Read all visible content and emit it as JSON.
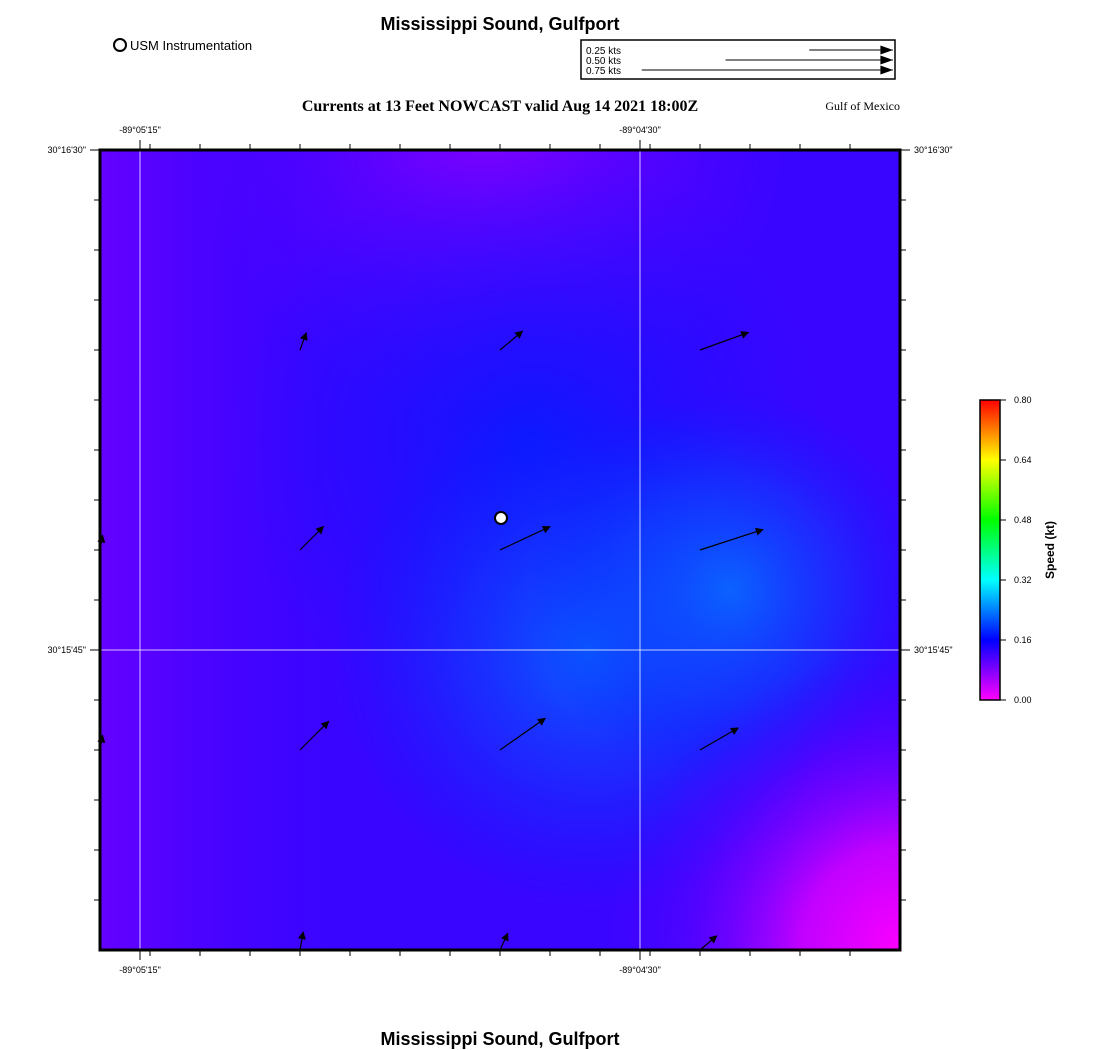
{
  "header": {
    "title": "Mississippi Sound, Gulfport",
    "subtitle": "Currents at 13 Feet NOWCAST valid Aug 14 2021 18:00Z",
    "region": "Gulf of Mexico"
  },
  "footer": {
    "title": "Mississippi Sound, Gulfport"
  },
  "instrument_legend": {
    "label": "USM Instrumentation"
  },
  "vector_legend": {
    "entries": [
      {
        "label": "0.25 kts",
        "speed": 0.25
      },
      {
        "label": "0.50 kts",
        "speed": 0.5
      },
      {
        "label": "0.75 kts",
        "speed": 0.75
      }
    ]
  },
  "axes": {
    "lon_ticks": [
      "-89°05'15\"",
      "-89°04'30\""
    ],
    "lat_ticks": [
      "30°16'30\"",
      "30°15'45\""
    ]
  },
  "colorbar": {
    "title": "Speed (kt)",
    "min": 0.0,
    "max": 0.8,
    "tick_labels": [
      "0.80",
      "0.64",
      "0.48",
      "0.32",
      "0.16",
      "0.00"
    ],
    "colors": [
      "#ff00ff",
      "#0000ff",
      "#00ffff",
      "#00ff00",
      "#ffff00",
      "#ff0000"
    ]
  },
  "chart_data": {
    "type": "vector_field",
    "lon_range": [
      "-89°05'19\"",
      "-89°04'07\""
    ],
    "lat_range": [
      "30°15'07\"",
      "30°16'30\""
    ],
    "speed_field_description": "blue-violet, stronger (~0.2 kt) center-right, weakest (~0) bottom-right",
    "vectors": [
      {
        "row": 1,
        "col": 1,
        "speed": 0.05,
        "dir_deg": 20
      },
      {
        "row": 1,
        "col": 2,
        "speed": 0.08,
        "dir_deg": 50
      },
      {
        "row": 1,
        "col": 3,
        "speed": 0.14,
        "dir_deg": 70
      },
      {
        "row": 2,
        "col": 0,
        "speed": 0.04,
        "dir_deg": 10
      },
      {
        "row": 2,
        "col": 1,
        "speed": 0.09,
        "dir_deg": 45
      },
      {
        "row": 2,
        "col": 2,
        "speed": 0.15,
        "dir_deg": 65
      },
      {
        "row": 2,
        "col": 3,
        "speed": 0.18,
        "dir_deg": 72
      },
      {
        "row": 3,
        "col": 0,
        "speed": 0.04,
        "dir_deg": 10
      },
      {
        "row": 3,
        "col": 1,
        "speed": 0.11,
        "dir_deg": 45
      },
      {
        "row": 3,
        "col": 2,
        "speed": 0.15,
        "dir_deg": 55
      },
      {
        "row": 3,
        "col": 3,
        "speed": 0.12,
        "dir_deg": 60
      },
      {
        "row": 4,
        "col": 1,
        "speed": 0.05,
        "dir_deg": 10
      },
      {
        "row": 4,
        "col": 2,
        "speed": 0.05,
        "dir_deg": 25
      },
      {
        "row": 4,
        "col": 3,
        "speed": 0.06,
        "dir_deg": 50
      }
    ],
    "station": {
      "name": "USM Instrumentation"
    }
  }
}
